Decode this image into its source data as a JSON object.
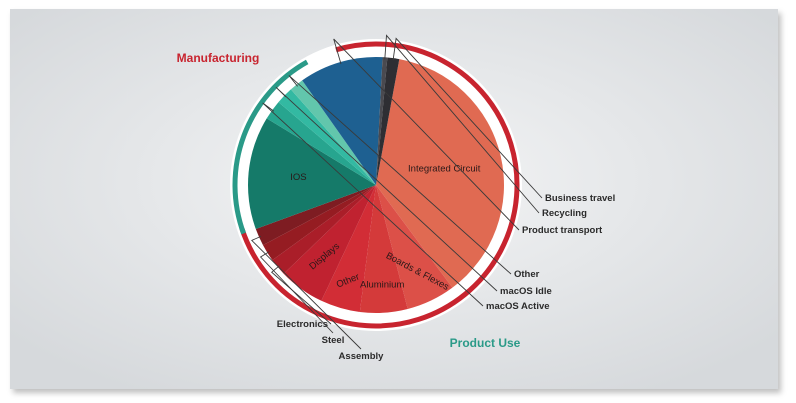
{
  "chart_data": {
    "type": "pie",
    "title": "",
    "groups": [
      {
        "name": "Manufacturing",
        "color": "#c8242f"
      },
      {
        "name": "Product Use",
        "color": "#2a9a88"
      }
    ],
    "slices": [
      {
        "label": "Integrated Circuit",
        "value": 36.9,
        "color": "#e06a52",
        "group": "Manufacturing"
      },
      {
        "label": "Boards & Flexes",
        "value": 6.2,
        "color": "#dc5048",
        "group": "Manufacturing"
      },
      {
        "label": "Aluminium",
        "value": 6.0,
        "color": "#d43a3a",
        "group": "Manufacturing"
      },
      {
        "label": "Other",
        "value": 5.0,
        "color": "#d22d36",
        "group": "Manufacturing"
      },
      {
        "label": "Displays",
        "value": 5.8,
        "color": "#c02230",
        "group": "Manufacturing"
      },
      {
        "label": "Electronics",
        "value": 2.2,
        "color": "#aa1e29",
        "group": "Manufacturing"
      },
      {
        "label": "Steel",
        "value": 2.2,
        "color": "#951c22",
        "group": "Manufacturing"
      },
      {
        "label": "Assembly",
        "value": 2.2,
        "color": "#7e1c22",
        "group": "Manufacturing"
      },
      {
        "label": "IOS",
        "value": 14.3,
        "color": "#157a69",
        "group": "Product Use"
      },
      {
        "label": "macOS Active",
        "value": 2.5,
        "color": "#27a58f",
        "group": "Product Use"
      },
      {
        "label": "macOS Idle",
        "value": 2.2,
        "color": "#33b9a2",
        "group": "Product Use"
      },
      {
        "label": "Other",
        "value": 1.8,
        "color": "#62c6ac",
        "group": "Product Use"
      },
      {
        "label": "Product transport",
        "value": 10.6,
        "color": "#1e6091",
        "group": null
      },
      {
        "label": "Recycling",
        "value": 0.6,
        "color": "#4a4a50",
        "group": null
      },
      {
        "label": "Business travel",
        "value": 1.5,
        "color": "#2e2e33",
        "group": null
      }
    ]
  },
  "colors": {
    "background_center": "#f4f5f6",
    "background_edge": "#d6d9dc",
    "ring_gap": "#ffffff"
  }
}
